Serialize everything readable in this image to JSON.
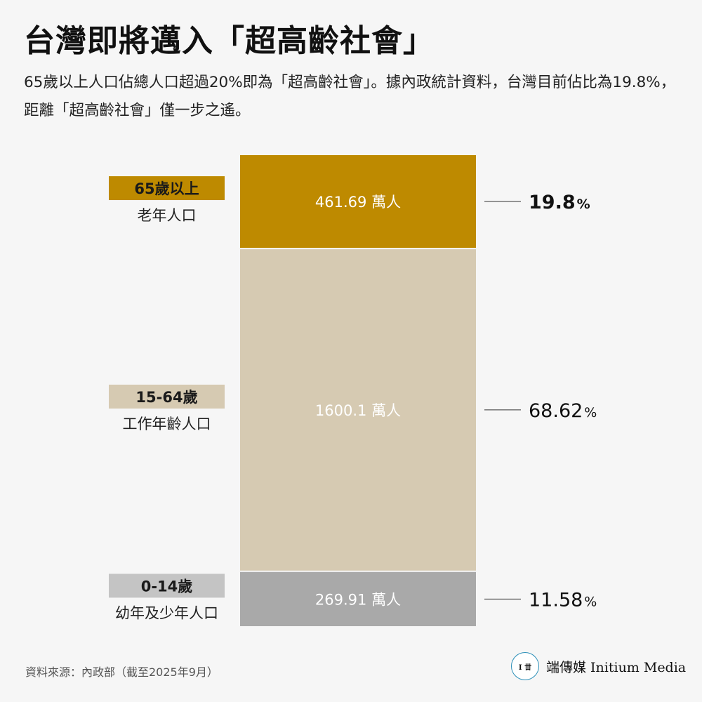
{
  "title": "台灣即將邁入「超高齡社會」",
  "subtitle": "65歲以上人口佔總人口超過20%即為「超高齡社會」。據內政統計資料，台灣目前佔比為19.8%，距離「超高齡社會」僅一步之遙。",
  "chart_data": {
    "type": "bar",
    "layout": "stacked-single-column",
    "unit": "萬人",
    "percent_unit": "%",
    "categories": [
      {
        "tag": "65歲以上",
        "label": "老年人口",
        "value": 461.69,
        "value_text": "461.69",
        "percent": 19.8,
        "percent_text": "19.8",
        "color": "#be8a00",
        "tag_color": "#be8a00",
        "tag_text_color": "#1a1a1a",
        "highlight": true
      },
      {
        "tag": "15-64歲",
        "label": "工作年齡人口",
        "value": 1600.1,
        "value_text": "1600.1",
        "percent": 68.62,
        "percent_text": "68.62",
        "color": "#d6cab2",
        "tag_color": "#d6cab2",
        "tag_text_color": "#1a1a1a",
        "highlight": false
      },
      {
        "tag": "0-14歲",
        "label": "幼年及少年人口",
        "value": 269.91,
        "value_text": "269.91",
        "percent": 11.58,
        "percent_text": "11.58",
        "color": "#a9a9a9",
        "tag_color": "#c4c4c4",
        "tag_text_color": "#1a1a1a",
        "highlight": false
      }
    ]
  },
  "source": "資料來源：內政部（截至2025年9月）",
  "brand": {
    "logo_text": "I 丗",
    "name": "端傳媒 Initium Media",
    "ring_color": "#2b8fb8"
  }
}
